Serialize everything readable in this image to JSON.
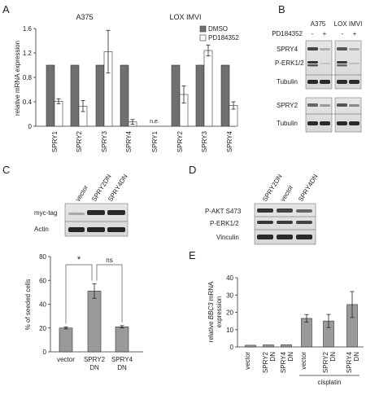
{
  "panels": {
    "A": "A",
    "B": "B",
    "C": "C",
    "D": "D",
    "E": "E"
  },
  "chart_data": [
    {
      "type": "bar",
      "panel": "A",
      "ylabel": "relative mRNA expression",
      "ylim": [
        0,
        1.6
      ],
      "yticks": [
        "0",
        "0.4",
        "0.8",
        "1.2",
        "1.6"
      ],
      "legend_placement": "top-right",
      "groups": [
        {
          "title": "A375",
          "categories": [
            "SPRY1",
            "SPRY2",
            "SPRY3",
            "SPRY4"
          ]
        },
        {
          "title": "LOX IMVI",
          "categories": [
            "SPRY1",
            "SPRY2",
            "SPRY3",
            "SPRY4"
          ]
        }
      ],
      "series": [
        {
          "name": "DMSO",
          "color": "#707070",
          "values": [
            1,
            1,
            1,
            1,
            null,
            1,
            1,
            1
          ]
        },
        {
          "name": "PD184352",
          "color": "#ffffff",
          "values": [
            0.41,
            0.33,
            1.22,
            0.07,
            null,
            0.52,
            1.24,
            0.34
          ],
          "errors": [
            0.04,
            0.09,
            0.35,
            0.04,
            null,
            0.14,
            0.09,
            0.06
          ]
        }
      ],
      "annotations": [
        {
          "group": 1,
          "category": 0,
          "text": "n.e."
        }
      ]
    },
    {
      "type": "bar",
      "panel": "C",
      "ylabel": "% of seeded cells",
      "ylim": [
        0,
        80
      ],
      "yticks": [
        "0",
        "20",
        "40",
        "60",
        "80"
      ],
      "categories": [
        [
          "vector"
        ],
        [
          "SPRY2",
          "DN"
        ],
        [
          "SPRY4",
          "DN"
        ]
      ],
      "values": [
        20,
        51,
        21
      ],
      "errors": [
        0.8,
        6,
        1
      ],
      "color": "#9a9a9a",
      "annotations": [
        {
          "text": "*",
          "between": [
            0,
            1
          ]
        },
        {
          "text": "ns",
          "between": [
            1,
            2
          ]
        }
      ]
    },
    {
      "type": "bar",
      "panel": "E",
      "ylabel_parts": [
        "relative ",
        "BBC3",
        " mRNA"
      ],
      "ylabel2": "expression",
      "ylim": [
        0,
        40
      ],
      "yticks": [
        "0",
        "10",
        "20",
        "30",
        "40"
      ],
      "categories": [
        [
          "vector"
        ],
        [
          "SPRY2",
          "DN"
        ],
        [
          "SPRY4",
          "DN"
        ],
        [
          "vector"
        ],
        [
          "SPRY2",
          "DN"
        ],
        [
          "SPRY4",
          "DN"
        ]
      ],
      "values": [
        1,
        1.2,
        1.3,
        16.5,
        15,
        24.5
      ],
      "errors": [
        0,
        0,
        0,
        2.2,
        3.8,
        7.5
      ],
      "color": "#9a9a9a",
      "bracket": {
        "label": "cisplatin",
        "from": 3,
        "to": 5
      }
    }
  ],
  "blots": {
    "B": {
      "header": [
        "A375",
        "LOX IMVI"
      ],
      "treatment_label": "PD184352",
      "signs": [
        "-",
        "+",
        "-",
        "+"
      ],
      "rows": [
        "SPRY4",
        "P-ERK1/2",
        "Tubulin",
        "SPRY2",
        "Tubulin"
      ]
    },
    "C": {
      "lanes": [
        "vector",
        "SPRY2DN",
        "SPRY4DN"
      ],
      "rows": [
        "myc-tag",
        "Actin"
      ]
    },
    "D": {
      "lanes": [
        "SPRY2DN",
        "vector",
        "SPRY4DN"
      ],
      "rows": [
        "P-AKT S473",
        "P-ERK1/2",
        "Vinculin"
      ]
    }
  }
}
